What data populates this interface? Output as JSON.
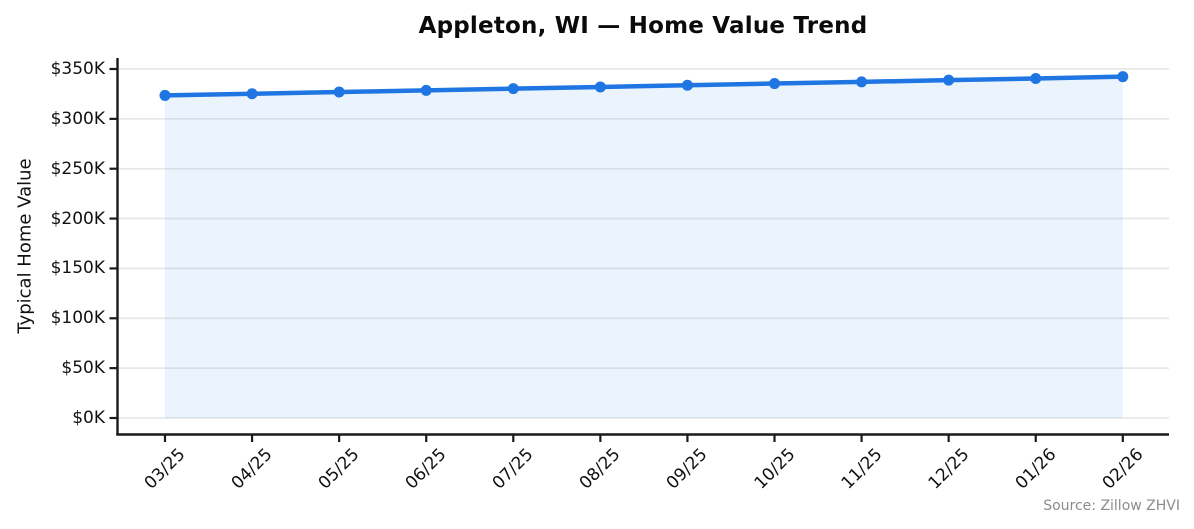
{
  "page": {
    "source_note": "Source: Zillow ZHVI"
  },
  "chart_data": {
    "type": "line",
    "title": "Appleton, WI — Home Value Trend",
    "xlabel": "",
    "ylabel": "Typical Home Value",
    "x": [
      "03/25",
      "04/25",
      "05/25",
      "06/25",
      "07/25",
      "08/25",
      "09/25",
      "10/25",
      "11/25",
      "12/25",
      "01/26",
      "02/26"
    ],
    "series": [
      {
        "name": "Typical Home Value",
        "values": [
          323500,
          325200,
          326900,
          328600,
          330300,
          332000,
          333700,
          335400,
          337100,
          338800,
          340500,
          342300
        ]
      }
    ],
    "ylim": [
      0,
      350000
    ],
    "yticks": [
      0,
      50000,
      100000,
      150000,
      200000,
      250000,
      300000,
      350000
    ],
    "ytick_labels": [
      "$0K",
      "$50K",
      "$100K",
      "$150K",
      "$200K",
      "$250K",
      "$300K",
      "$350K"
    ],
    "grid": "horizontal",
    "legend": "none",
    "marker": "circle",
    "area_fill": true,
    "line_color": "#1f76e3",
    "fill_color": "rgba(31,118,227,0.09)",
    "grid_color": "#e8e8e8",
    "axis_color": "#1a1a1a"
  }
}
